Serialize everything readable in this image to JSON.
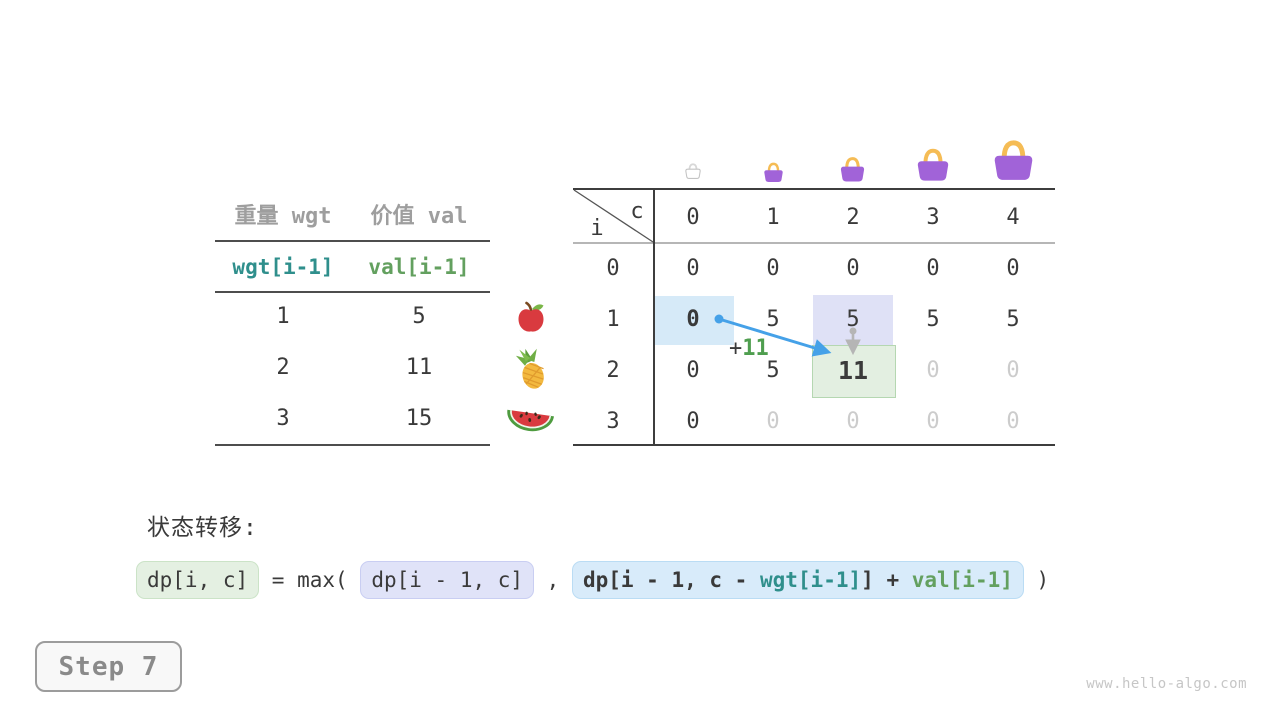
{
  "meta": {
    "step_label": "Step 7",
    "watermark": "www.hello-algo.com"
  },
  "item_table": {
    "headers": [
      "重量 wgt",
      "价值 val"
    ],
    "var_row": [
      "wgt[i-1]",
      "val[i-1]"
    ],
    "rows": [
      {
        "wgt": "1",
        "val": "5"
      },
      {
        "wgt": "2",
        "val": "11"
      },
      {
        "wgt": "3",
        "val": "15"
      }
    ],
    "fruits": [
      "apple",
      "pineapple",
      "watermelon"
    ]
  },
  "dp_table": {
    "corner_col": "c",
    "corner_row": "i",
    "col_headers": [
      "0",
      "1",
      "2",
      "3",
      "4"
    ],
    "row_headers": [
      "0",
      "1",
      "2",
      "3"
    ],
    "cells": [
      [
        {
          "v": "0"
        },
        {
          "v": "0"
        },
        {
          "v": "0"
        },
        {
          "v": "0"
        },
        {
          "v": "0"
        }
      ],
      [
        {
          "v": "0",
          "s": "bold"
        },
        {
          "v": "5"
        },
        {
          "v": "5"
        },
        {
          "v": "5"
        },
        {
          "v": "5"
        }
      ],
      [
        {
          "v": "0"
        },
        {
          "v": "5"
        },
        {
          "v": "11",
          "s": "bold big"
        },
        {
          "v": "0",
          "s": "dim"
        },
        {
          "v": "0",
          "s": "dim"
        }
      ],
      [
        {
          "v": "0"
        },
        {
          "v": "0",
          "s": "dim"
        },
        {
          "v": "0",
          "s": "dim"
        },
        {
          "v": "0",
          "s": "dim"
        },
        {
          "v": "0",
          "s": "dim"
        }
      ]
    ],
    "bags": [
      "bag-outline-icon",
      "handbag-icon",
      "handbag-icon",
      "handbag-icon",
      "handbag-icon"
    ],
    "annotation_plus": "+",
    "annotation_value": "11"
  },
  "formula": {
    "label": "状态转移:",
    "lhs": "dp[i, c]",
    "op": " = max( ",
    "arg1": "dp[i - 1, c]",
    "comma": " , ",
    "arg2_p1": "dp[i - 1, c - ",
    "arg2_p2": "wgt[i-1]",
    "arg2_p3": "]",
    "arg2_p4": " + ",
    "arg2_p5": "val[i-1]",
    "close": " )"
  },
  "colors": {
    "teal": "#2f8f8c",
    "green": "#63a05f",
    "dim_gray": "#cccccc",
    "highlight_blue": "#d6eaf8",
    "highlight_lavender": "#dfe1f6",
    "highlight_green": "#e3efe1",
    "blue_arrow": "#45a1e8",
    "gray_arrow": "#b5b5b5",
    "bag_purple": "#a163d8",
    "bag_handle": "#f5bc55"
  }
}
